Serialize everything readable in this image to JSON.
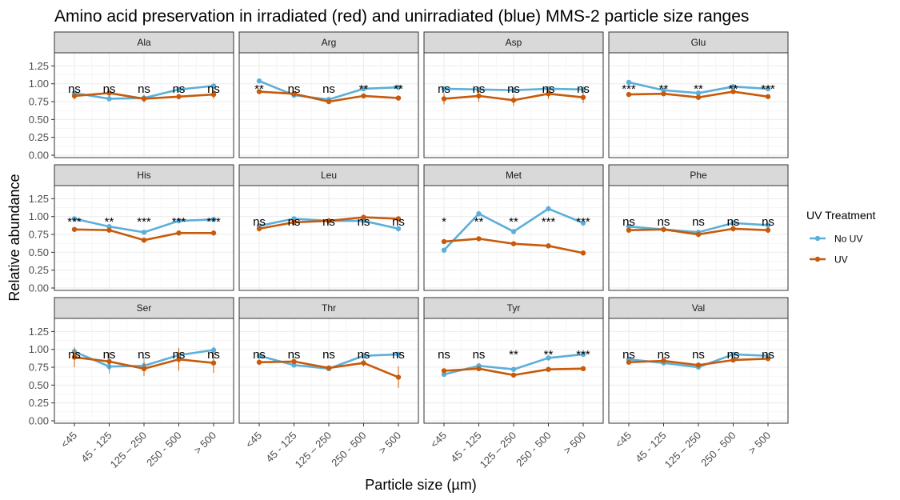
{
  "chart_data": {
    "type": "line",
    "title": "Amino acid preservation in irradiated (red) and unirradiated (blue) MMS-2 particle size ranges",
    "xlabel": "Particle size (µm)",
    "ylabel": "Relative abundance",
    "categories": [
      "<45",
      "45 - 125",
      "125 – 250",
      "250 - 500",
      "> 500"
    ],
    "ylim": [
      0,
      1.25
    ],
    "yticks": [
      "0.00",
      "0.25",
      "0.50",
      "0.75",
      "1.00",
      "1.25"
    ],
    "grid": true,
    "facet_grid": "3 rows x 4 columns",
    "legend": {
      "title": "UV Treatment",
      "position": "right",
      "entries": [
        {
          "name": "No UV",
          "color": "#5bafd9"
        },
        {
          "name": "UV",
          "color": "#c75a0b"
        }
      ]
    },
    "panels": [
      {
        "label": "Ala",
        "sig": [
          "ns",
          "ns",
          "ns",
          "ns",
          "ns"
        ],
        "series": [
          {
            "name": "No UV",
            "values": [
              0.87,
              0.79,
              0.8,
              0.92,
              0.97
            ],
            "err": [
              0.04,
              0.03,
              0.05,
              0.03,
              0.03
            ]
          },
          {
            "name": "UV",
            "values": [
              0.83,
              0.87,
              0.79,
              0.82,
              0.85
            ],
            "err": [
              0.05,
              0.05,
              0.05,
              0.04,
              0.06
            ]
          }
        ]
      },
      {
        "label": "Arg",
        "sig": [
          "**",
          "ns",
          "ns",
          "**",
          "**"
        ],
        "series": [
          {
            "name": "No UV",
            "values": [
              1.04,
              0.84,
              0.78,
              0.93,
              0.95
            ],
            "err": [
              0.02,
              0.02,
              0.02,
              0.02,
              0.02
            ]
          },
          {
            "name": "UV",
            "values": [
              0.89,
              0.86,
              0.75,
              0.83,
              0.8
            ],
            "err": [
              0.02,
              0.02,
              0.02,
              0.02,
              0.02
            ]
          }
        ]
      },
      {
        "label": "Asp",
        "sig": [
          "ns",
          "ns",
          "ns",
          "ns",
          "ns"
        ],
        "series": [
          {
            "name": "No UV",
            "values": [
              0.93,
              0.92,
              0.91,
              0.93,
              0.92
            ],
            "err": [
              0.03,
              0.03,
              0.03,
              0.03,
              0.03
            ]
          },
          {
            "name": "UV",
            "values": [
              0.79,
              0.83,
              0.77,
              0.86,
              0.81
            ],
            "err": [
              0.08,
              0.08,
              0.08,
              0.07,
              0.08
            ]
          }
        ]
      },
      {
        "label": "Glu",
        "sig": [
          "***",
          "**",
          "**",
          "**",
          "***"
        ],
        "series": [
          {
            "name": "No UV",
            "values": [
              1.02,
              0.91,
              0.87,
              0.96,
              0.93
            ],
            "err": [
              0.02,
              0.02,
              0.02,
              0.02,
              0.02
            ]
          },
          {
            "name": "UV",
            "values": [
              0.85,
              0.86,
              0.81,
              0.89,
              0.82
            ],
            "err": [
              0.02,
              0.02,
              0.02,
              0.02,
              0.02
            ]
          }
        ]
      },
      {
        "label": "His",
        "sig": [
          "***",
          "**",
          "***",
          "***",
          "***"
        ],
        "series": [
          {
            "name": "No UV",
            "values": [
              0.97,
              0.86,
              0.78,
              0.94,
              0.96
            ],
            "err": [
              0.02,
              0.02,
              0.02,
              0.02,
              0.02
            ]
          },
          {
            "name": "UV",
            "values": [
              0.82,
              0.81,
              0.67,
              0.77,
              0.77
            ],
            "err": [
              0.02,
              0.02,
              0.02,
              0.02,
              0.02
            ]
          }
        ]
      },
      {
        "label": "Leu",
        "sig": [
          "ns",
          "ns",
          "ns",
          "ns",
          "ns"
        ],
        "series": [
          {
            "name": "No UV",
            "values": [
              0.87,
              0.97,
              0.94,
              0.94,
              0.83
            ],
            "err": [
              0.04,
              0.03,
              0.03,
              0.03,
              0.04
            ]
          },
          {
            "name": "UV",
            "values": [
              0.83,
              0.92,
              0.94,
              0.99,
              0.97
            ],
            "err": [
              0.04,
              0.04,
              0.04,
              0.03,
              0.03
            ]
          }
        ]
      },
      {
        "label": "Met",
        "sig": [
          "*",
          "**",
          "**",
          "***",
          "***"
        ],
        "series": [
          {
            "name": "No UV",
            "values": [
              0.53,
              1.04,
              0.79,
              1.11,
              0.91
            ],
            "err": [
              0.03,
              0.04,
              0.03,
              0.04,
              0.04
            ]
          },
          {
            "name": "UV",
            "values": [
              0.65,
              0.69,
              0.62,
              0.59,
              0.49
            ],
            "err": [
              0.02,
              0.02,
              0.02,
              0.02,
              0.02
            ]
          }
        ]
      },
      {
        "label": "Phe",
        "sig": [
          "ns",
          "ns",
          "ns",
          "ns",
          "ns"
        ],
        "series": [
          {
            "name": "No UV",
            "values": [
              0.86,
              0.82,
              0.78,
              0.91,
              0.88
            ],
            "err": [
              0.03,
              0.03,
              0.03,
              0.04,
              0.04
            ]
          },
          {
            "name": "UV",
            "values": [
              0.81,
              0.82,
              0.75,
              0.83,
              0.81
            ],
            "err": [
              0.04,
              0.04,
              0.04,
              0.04,
              0.04
            ]
          }
        ]
      },
      {
        "label": "Ser",
        "sig": [
          "ns",
          "ns",
          "ns",
          "ns",
          "ns"
        ],
        "series": [
          {
            "name": "No UV",
            "values": [
              0.97,
              0.76,
              0.77,
              0.92,
              0.99
            ],
            "err": [
              0.04,
              0.1,
              0.12,
              0.06,
              0.05
            ]
          },
          {
            "name": "UV",
            "values": [
              0.89,
              0.83,
              0.73,
              0.86,
              0.81
            ],
            "err": [
              0.14,
              0.13,
              0.1,
              0.16,
              0.14
            ]
          }
        ]
      },
      {
        "label": "Thr",
        "sig": [
          "ns",
          "ns",
          "ns",
          "ns",
          "ns"
        ],
        "series": [
          {
            "name": "No UV",
            "values": [
              0.91,
              0.78,
              0.73,
              0.91,
              0.93
            ],
            "err": [
              0.04,
              0.03,
              0.03,
              0.04,
              0.04
            ]
          },
          {
            "name": "UV",
            "values": [
              0.82,
              0.83,
              0.74,
              0.81,
              0.61
            ],
            "err": [
              0.04,
              0.04,
              0.03,
              0.05,
              0.15
            ]
          }
        ]
      },
      {
        "label": "Tyr",
        "sig": [
          "ns",
          "ns",
          "**",
          "**",
          "***"
        ],
        "series": [
          {
            "name": "No UV",
            "values": [
              0.65,
              0.77,
              0.72,
              0.88,
              0.93
            ],
            "err": [
              0.02,
              0.02,
              0.02,
              0.02,
              0.02
            ]
          },
          {
            "name": "UV",
            "values": [
              0.7,
              0.73,
              0.64,
              0.72,
              0.73
            ],
            "err": [
              0.02,
              0.02,
              0.02,
              0.02,
              0.02
            ]
          }
        ]
      },
      {
        "label": "Val",
        "sig": [
          "ns",
          "ns",
          "ns",
          "ns",
          "ns"
        ],
        "series": [
          {
            "name": "No UV",
            "values": [
              0.86,
              0.81,
              0.75,
              0.93,
              0.91
            ],
            "err": [
              0.03,
              0.03,
              0.03,
              0.03,
              0.03
            ]
          },
          {
            "name": "UV",
            "values": [
              0.82,
              0.84,
              0.78,
              0.85,
              0.87
            ],
            "err": [
              0.03,
              0.03,
              0.03,
              0.03,
              0.03
            ]
          }
        ]
      }
    ]
  }
}
